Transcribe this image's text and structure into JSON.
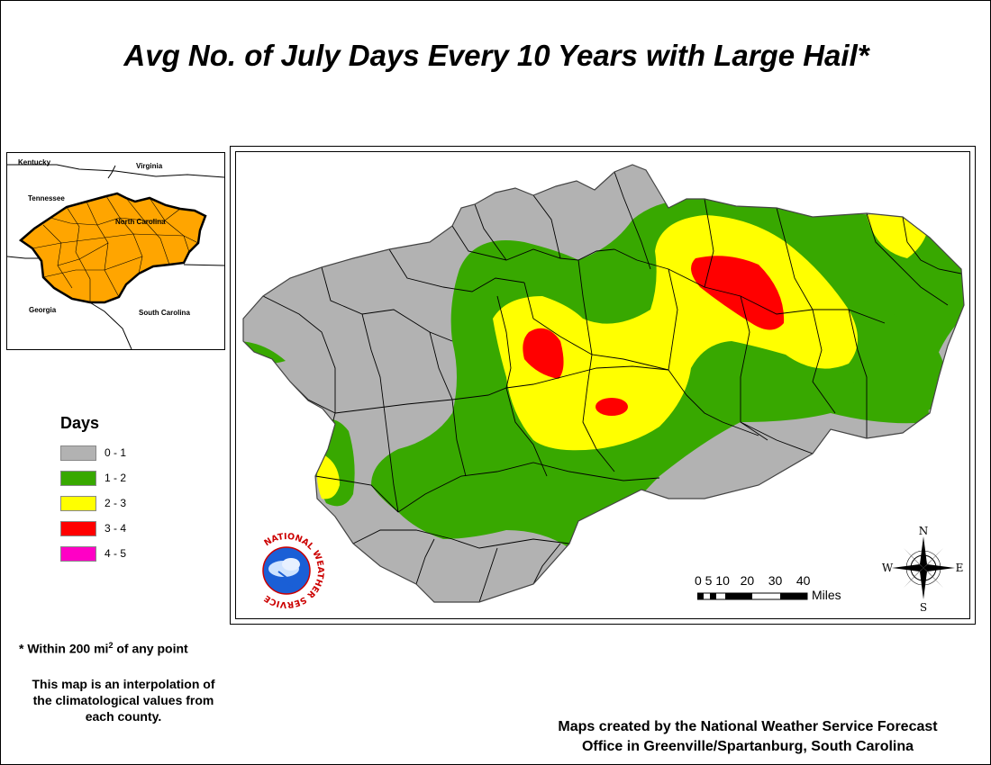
{
  "title": "Avg No. of July Days Every 10 Years with Large Hail*",
  "inset": {
    "states": [
      "Kentucky",
      "Virginia",
      "Tennessee",
      "North Carolina",
      "Georgia",
      "South Carolina"
    ],
    "highlight_color": "#ffa500"
  },
  "legend": {
    "title": "Days",
    "items": [
      {
        "label": "0 - 1",
        "color": "#b2b2b2"
      },
      {
        "label": "1 - 2",
        "color": "#38a800"
      },
      {
        "label": "2 - 3",
        "color": "#ffff00"
      },
      {
        "label": "3 - 4",
        "color": "#ff0000"
      },
      {
        "label": "4 - 5",
        "color": "#ff00c5"
      }
    ]
  },
  "footnote": {
    "prefix": "* Within 200 mi",
    "sup": "2",
    "suffix": " of any point"
  },
  "interpolation_note": [
    "This map is an interpolation of",
    "the climatological values from",
    "each county."
  ],
  "credit": [
    "Maps created by the National Weather Service Forecast",
    "Office in Greenville/Spartanburg, South Carolina"
  ],
  "scale": {
    "ticks": "0 5 10   20    30    40",
    "units": "Miles"
  },
  "compass": {
    "n": "N",
    "s": "S",
    "e": "E",
    "w": "W"
  },
  "logo": {
    "text": "NATIONAL WEATHER SERVICE"
  }
}
